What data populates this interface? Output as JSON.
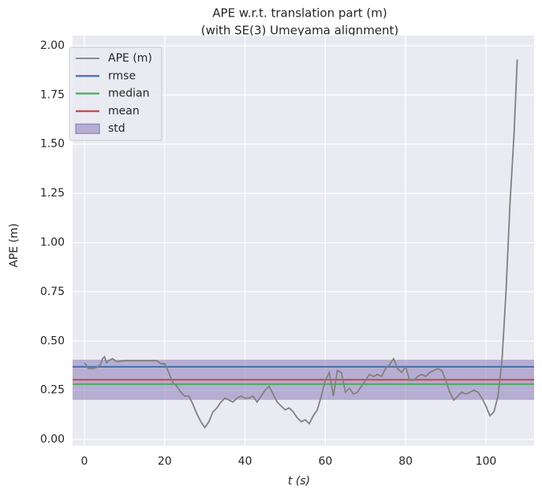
{
  "chart_data": {
    "type": "line",
    "title": "APE w.r.t. translation part (m)",
    "subtitle": "(with SE(3) Umeyama alignment)",
    "xlabel": "t (s)",
    "ylabel": "APE (m)",
    "xlim": [
      -2.95,
      112.0
    ],
    "ylim": [
      -0.032,
      2.052
    ],
    "xticks": [
      0,
      20,
      40,
      60,
      80,
      100
    ],
    "yticks": [
      {
        "value": 0,
        "label": "0.00"
      },
      {
        "value": 0.25,
        "label": "0.25"
      },
      {
        "value": 0.5,
        "label": "0.50"
      },
      {
        "value": 0.75,
        "label": "0.75"
      },
      {
        "value": 1,
        "label": "1.00"
      },
      {
        "value": 1.25,
        "label": "1.25"
      },
      {
        "value": 1.5,
        "label": "1.50"
      },
      {
        "value": 1.75,
        "label": "1.75"
      },
      {
        "value": 2,
        "label": "2.00"
      }
    ],
    "grid": true,
    "legend": "upper left",
    "x": [
      0,
      1,
      2,
      3,
      4,
      4.5,
      5,
      5.5,
      6,
      7,
      8,
      10,
      12,
      14,
      16,
      18,
      19,
      20,
      21,
      22,
      23,
      24,
      25,
      26,
      27,
      28,
      29,
      30,
      31,
      32,
      33,
      34,
      35,
      36,
      37,
      38,
      39,
      40,
      41,
      42,
      43,
      44,
      45,
      46,
      47,
      48,
      49,
      50,
      51,
      52,
      53,
      54,
      55,
      56,
      57,
      58,
      59,
      60,
      61,
      62,
      63,
      64,
      65,
      66,
      67,
      68,
      69,
      70,
      71,
      72,
      73,
      74,
      75,
      76,
      77,
      78,
      79,
      80,
      81,
      82,
      83,
      84,
      85,
      86,
      87,
      88,
      89,
      90,
      91,
      92,
      93,
      94,
      95,
      96,
      97,
      98,
      99,
      100,
      101,
      102,
      103,
      104,
      105,
      106,
      107,
      107.8
    ],
    "series": [
      {
        "name": "APE (m)",
        "kind": "line",
        "color": "#808080",
        "values": [
          0.39,
          0.36,
          0.36,
          0.365,
          0.38,
          0.41,
          0.42,
          0.39,
          0.4,
          0.41,
          0.395,
          0.4,
          0.4,
          0.4,
          0.4,
          0.4,
          0.385,
          0.385,
          0.34,
          0.29,
          0.27,
          0.24,
          0.22,
          0.22,
          0.18,
          0.13,
          0.09,
          0.06,
          0.09,
          0.14,
          0.16,
          0.19,
          0.21,
          0.2,
          0.19,
          0.21,
          0.22,
          0.21,
          0.21,
          0.22,
          0.19,
          0.22,
          0.25,
          0.27,
          0.23,
          0.19,
          0.17,
          0.15,
          0.16,
          0.14,
          0.11,
          0.09,
          0.1,
          0.08,
          0.12,
          0.15,
          0.22,
          0.3,
          0.34,
          0.22,
          0.35,
          0.34,
          0.24,
          0.26,
          0.23,
          0.24,
          0.27,
          0.3,
          0.33,
          0.32,
          0.33,
          0.32,
          0.36,
          0.38,
          0.41,
          0.36,
          0.34,
          0.37,
          0.3,
          0.3,
          0.32,
          0.33,
          0.32,
          0.34,
          0.35,
          0.36,
          0.35,
          0.3,
          0.24,
          0.2,
          0.22,
          0.24,
          0.23,
          0.24,
          0.25,
          0.24,
          0.21,
          0.17,
          0.12,
          0.14,
          0.22,
          0.4,
          0.75,
          1.2,
          1.55,
          1.93
        ]
      },
      {
        "name": "rmse",
        "kind": "hline",
        "color": "#4c72b0",
        "value": 0.369
      },
      {
        "name": "median",
        "kind": "hline",
        "color": "#55a868",
        "value": 0.281
      },
      {
        "name": "mean",
        "kind": "hline",
        "color": "#c44e52",
        "value": 0.303
      },
      {
        "name": "std",
        "kind": "band",
        "color": "#8172b2",
        "value": 0.102
      }
    ]
  }
}
